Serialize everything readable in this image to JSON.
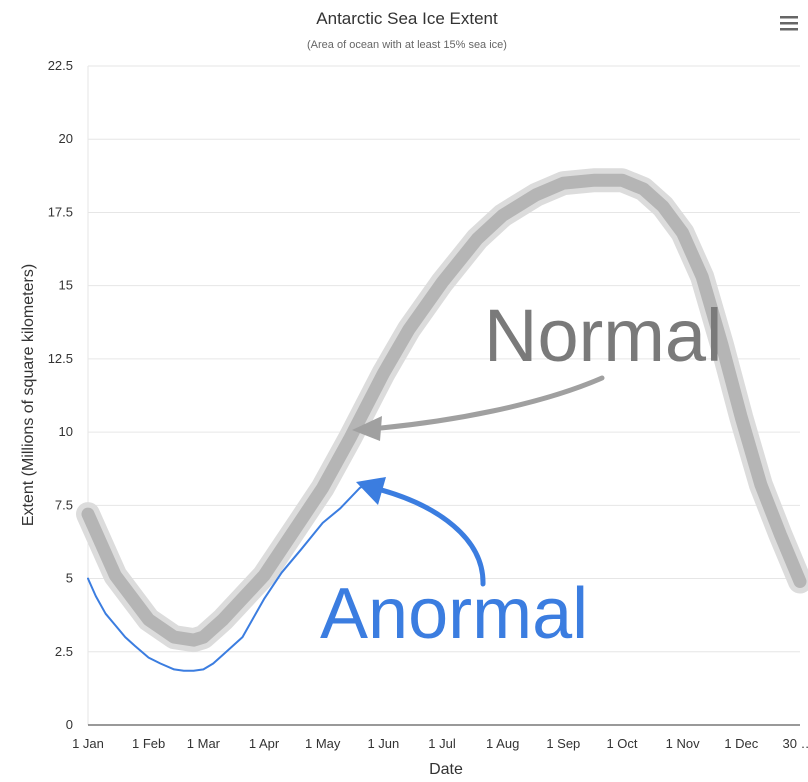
{
  "chart_data": {
    "type": "line",
    "title": "Antarctic Sea Ice Extent",
    "subtitle": "(Area of ocean with at least 15% sea ice)",
    "xlabel": "Date",
    "ylabel": "Extent (Millions of square kilometers)",
    "ylim": [
      0,
      22.5
    ],
    "yticks": [
      "0",
      "2.5",
      "5",
      "7.5",
      "10",
      "12.5",
      "15",
      "17.5",
      "20",
      "22.5"
    ],
    "xlim": [
      1,
      365
    ],
    "xticks": [
      {
        "day": 1,
        "label": "1 Jan"
      },
      {
        "day": 32,
        "label": "1 Feb"
      },
      {
        "day": 60,
        "label": "1 Mar"
      },
      {
        "day": 91,
        "label": "1 Apr"
      },
      {
        "day": 121,
        "label": "1 May"
      },
      {
        "day": 152,
        "label": "1 Jun"
      },
      {
        "day": 182,
        "label": "1 Jul"
      },
      {
        "day": 213,
        "label": "1 Aug"
      },
      {
        "day": 244,
        "label": "1 Sep"
      },
      {
        "day": 274,
        "label": "1 Oct"
      },
      {
        "day": 305,
        "label": "1 Nov"
      },
      {
        "day": 335,
        "label": "1 Dec"
      },
      {
        "day": 364,
        "label": "30 …"
      }
    ],
    "grid": true,
    "legend": "none",
    "series": [
      {
        "style": "band",
        "color": "#b5b5b5",
        "x": [
          1,
          15,
          32,
          45,
          55,
          60,
          70,
          91,
          110,
          121,
          135,
          152,
          165,
          182,
          200,
          213,
          230,
          244,
          260,
          274,
          285,
          295,
          305,
          315,
          325,
          335,
          345,
          355,
          365
        ],
        "values": [
          7.2,
          5.1,
          3.6,
          3.0,
          2.9,
          3.0,
          3.6,
          5.1,
          7.0,
          8.1,
          9.8,
          12.0,
          13.5,
          15.1,
          16.6,
          17.4,
          18.1,
          18.5,
          18.6,
          18.6,
          18.3,
          17.7,
          16.8,
          15.3,
          13.0,
          10.5,
          8.2,
          6.5,
          4.9
        ]
      },
      {
        "style": "line",
        "color": "#3b7de0",
        "x": [
          1,
          5,
          10,
          15,
          20,
          25,
          32,
          38,
          45,
          50,
          55,
          60,
          65,
          70,
          80,
          91,
          100,
          110,
          121,
          130,
          140,
          146
        ],
        "values": [
          5.0,
          4.4,
          3.8,
          3.4,
          3.0,
          2.7,
          2.3,
          2.1,
          1.9,
          1.85,
          1.85,
          1.9,
          2.1,
          2.4,
          3.0,
          4.3,
          5.2,
          6.0,
          6.9,
          7.4,
          8.1,
          8.3
        ]
      }
    ],
    "annotations": [
      {
        "text": "Normal",
        "color": "#7a7a7a"
      },
      {
        "text": "Anormal",
        "color": "#3b7de0"
      }
    ]
  }
}
